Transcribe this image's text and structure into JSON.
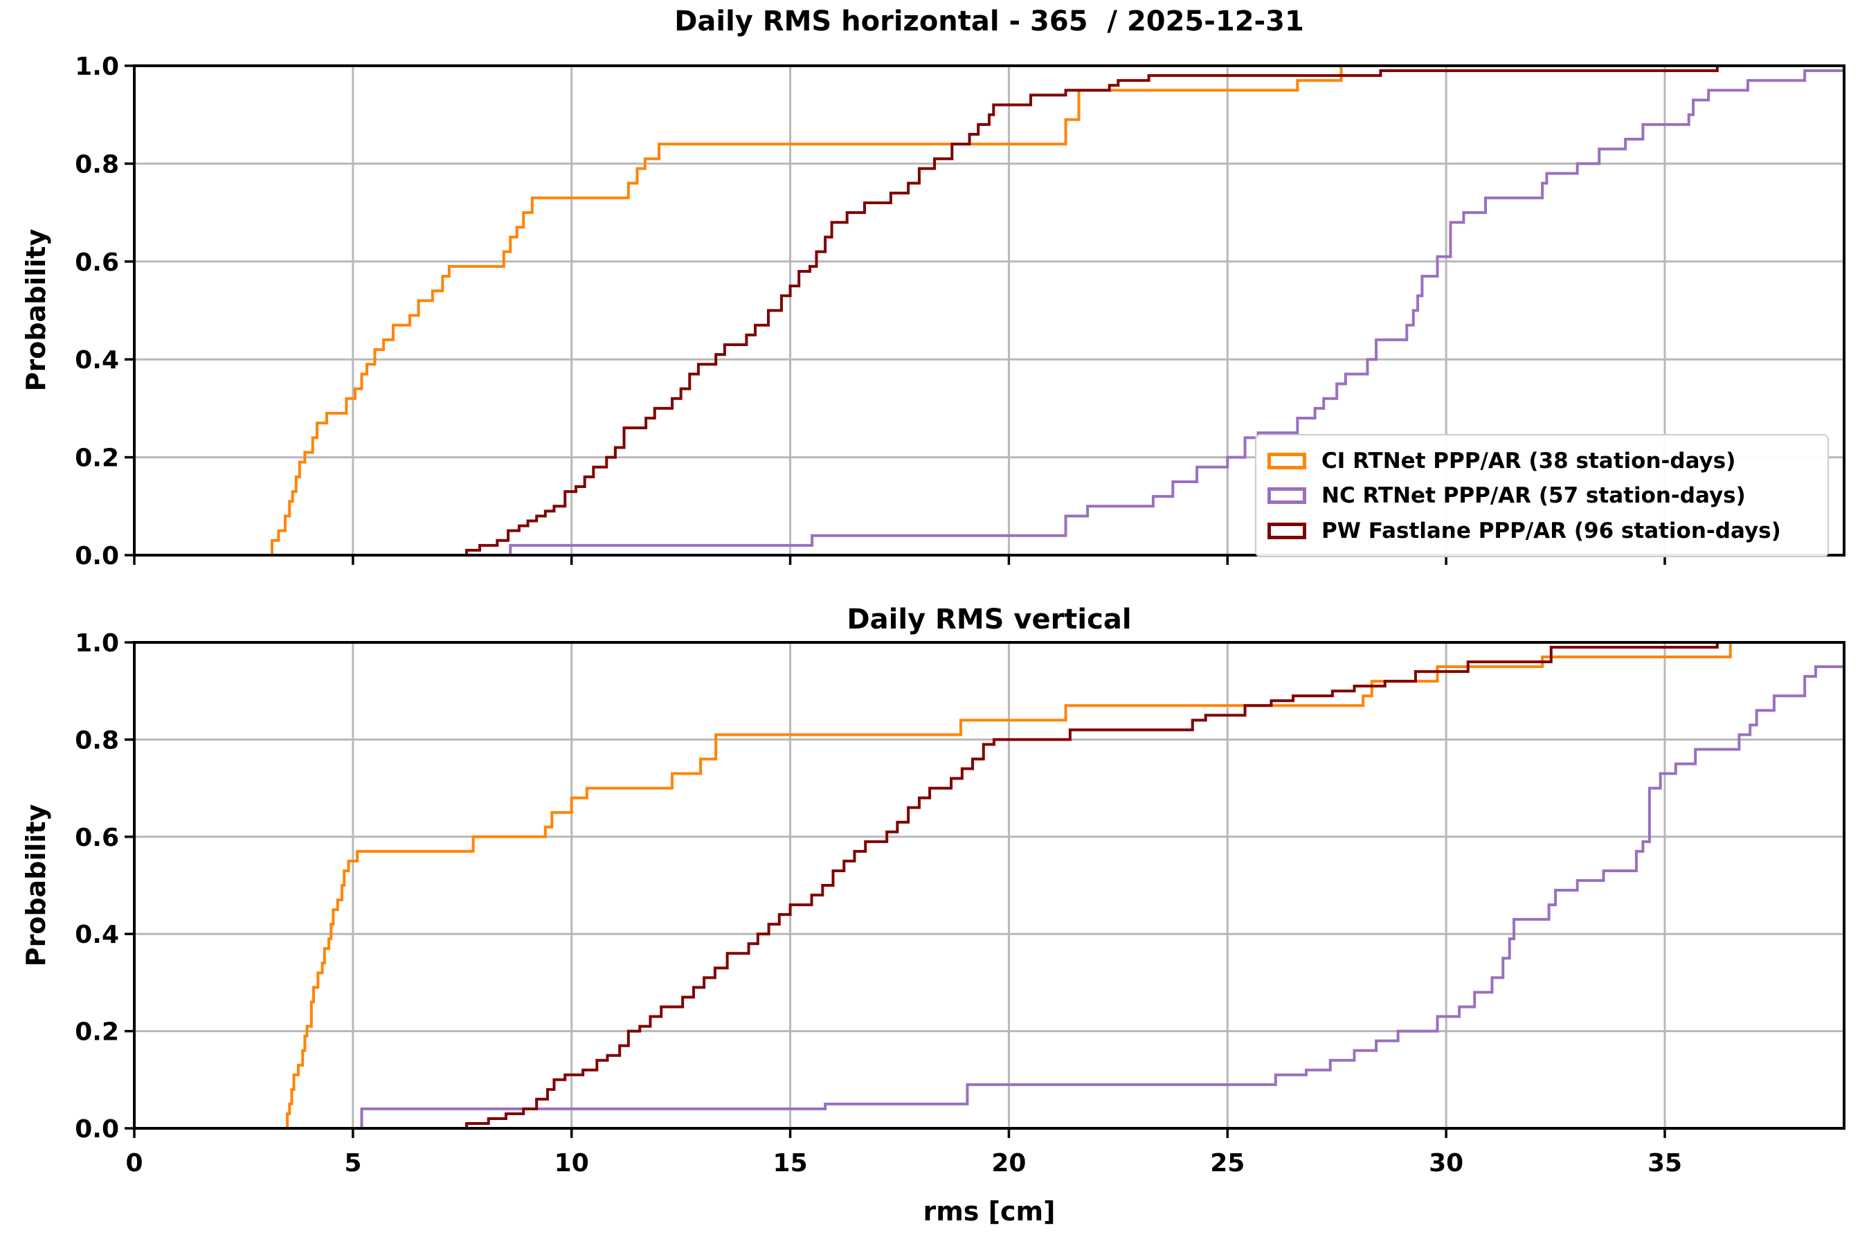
{
  "figure": {
    "title_top": "Daily RMS horizontal - 365  / 2025-12-31",
    "title_bottom": "Daily RMS vertical",
    "xlabel": "rms [cm]",
    "ylabel": "Probability"
  },
  "colors": {
    "ci_orange": "#ff8408",
    "nc_purple": "#9a6fc0",
    "pw_darkred": "#800000",
    "grid": "#b8b8b8",
    "axis": "#000000",
    "legend_border": "#cccccc",
    "background": "#ffffff"
  },
  "legend": {
    "entries": [
      {
        "label": "CI RTNet PPP/AR (38 station-days)",
        "color": "#ff8408"
      },
      {
        "label": "NC RTNet PPP/AR (57 station-days)",
        "color": "#9a6fc0"
      },
      {
        "label": "PW Fastlane PPP/AR (96 station-days)",
        "color": "#800000"
      }
    ]
  },
  "chart_data": [
    {
      "type": "line",
      "subtype": "ecdf-step",
      "title": "Daily RMS horizontal - 365  / 2025-12-31",
      "xlabel": "",
      "ylabel": "Probability",
      "xlim": [
        0,
        39.1
      ],
      "ylim": [
        0,
        1
      ],
      "xticks": [
        0,
        5,
        10,
        15,
        20,
        25,
        30,
        35
      ],
      "yticks": [
        0,
        0.2,
        0.4,
        0.6,
        0.8,
        1
      ],
      "show_x_tick_labels": false,
      "grid": true,
      "legend_position": "lower right",
      "series": [
        {
          "name": "CI RTNet PPP/AR (38 station-days)",
          "color": "#ff8408",
          "extend_right": true,
          "steps": [
            [
              3.15,
              0.03
            ],
            [
              3.3,
              0.05
            ],
            [
              3.45,
              0.08
            ],
            [
              3.55,
              0.11
            ],
            [
              3.62,
              0.13
            ],
            [
              3.7,
              0.16
            ],
            [
              3.78,
              0.19
            ],
            [
              3.9,
              0.21
            ],
            [
              4.08,
              0.24
            ],
            [
              4.18,
              0.27
            ],
            [
              4.4,
              0.29
            ],
            [
              4.85,
              0.32
            ],
            [
              5.05,
              0.34
            ],
            [
              5.2,
              0.37
            ],
            [
              5.32,
              0.39
            ],
            [
              5.5,
              0.42
            ],
            [
              5.7,
              0.44
            ],
            [
              5.92,
              0.47
            ],
            [
              6.3,
              0.49
            ],
            [
              6.5,
              0.52
            ],
            [
              6.82,
              0.54
            ],
            [
              7.05,
              0.57
            ],
            [
              7.2,
              0.59
            ],
            [
              8.45,
              0.62
            ],
            [
              8.6,
              0.65
            ],
            [
              8.75,
              0.67
            ],
            [
              8.9,
              0.7
            ],
            [
              9.1,
              0.73
            ],
            [
              11.3,
              0.76
            ],
            [
              11.5,
              0.79
            ],
            [
              11.68,
              0.81
            ],
            [
              12.0,
              0.84
            ],
            [
              21.3,
              0.89
            ],
            [
              21.6,
              0.95
            ],
            [
              26.6,
              0.97
            ],
            [
              27.6,
              1.0
            ]
          ]
        },
        {
          "name": "NC RTNet PPP/AR (57 station-days)",
          "color": "#9a6fc0",
          "extend_right": true,
          "steps": [
            [
              8.6,
              0.02
            ],
            [
              15.5,
              0.04
            ],
            [
              21.3,
              0.08
            ],
            [
              21.8,
              0.1
            ],
            [
              23.3,
              0.12
            ],
            [
              23.75,
              0.15
            ],
            [
              24.3,
              0.18
            ],
            [
              25.0,
              0.2
            ],
            [
              25.4,
              0.24
            ],
            [
              25.7,
              0.25
            ],
            [
              26.6,
              0.28
            ],
            [
              27.0,
              0.3
            ],
            [
              27.2,
              0.32
            ],
            [
              27.5,
              0.35
            ],
            [
              27.7,
              0.37
            ],
            [
              28.2,
              0.4
            ],
            [
              28.4,
              0.44
            ],
            [
              29.1,
              0.47
            ],
            [
              29.25,
              0.5
            ],
            [
              29.35,
              0.53
            ],
            [
              29.45,
              0.57
            ],
            [
              29.8,
              0.61
            ],
            [
              30.1,
              0.68
            ],
            [
              30.4,
              0.7
            ],
            [
              30.9,
              0.73
            ],
            [
              32.2,
              0.76
            ],
            [
              32.3,
              0.78
            ],
            [
              33.0,
              0.8
            ],
            [
              33.5,
              0.83
            ],
            [
              34.1,
              0.85
            ],
            [
              34.5,
              0.88
            ],
            [
              35.55,
              0.9
            ],
            [
              35.65,
              0.93
            ],
            [
              36.0,
              0.95
            ],
            [
              36.9,
              0.97
            ],
            [
              38.2,
              0.99
            ]
          ]
        },
        {
          "name": "PW Fastlane PPP/AR (96 station-days)",
          "color": "#800000",
          "extend_right": false,
          "steps": [
            [
              7.6,
              0.01
            ],
            [
              7.9,
              0.02
            ],
            [
              8.3,
              0.03
            ],
            [
              8.55,
              0.05
            ],
            [
              8.8,
              0.06
            ],
            [
              9.0,
              0.07
            ],
            [
              9.2,
              0.08
            ],
            [
              9.4,
              0.09
            ],
            [
              9.6,
              0.1
            ],
            [
              9.85,
              0.13
            ],
            [
              10.1,
              0.14
            ],
            [
              10.3,
              0.16
            ],
            [
              10.5,
              0.18
            ],
            [
              10.8,
              0.2
            ],
            [
              11.0,
              0.22
            ],
            [
              11.2,
              0.26
            ],
            [
              11.7,
              0.28
            ],
            [
              11.9,
              0.3
            ],
            [
              12.3,
              0.32
            ],
            [
              12.5,
              0.34
            ],
            [
              12.7,
              0.37
            ],
            [
              12.9,
              0.39
            ],
            [
              13.3,
              0.41
            ],
            [
              13.5,
              0.43
            ],
            [
              14.0,
              0.45
            ],
            [
              14.2,
              0.47
            ],
            [
              14.5,
              0.5
            ],
            [
              14.8,
              0.53
            ],
            [
              15.0,
              0.55
            ],
            [
              15.2,
              0.58
            ],
            [
              15.45,
              0.59
            ],
            [
              15.6,
              0.62
            ],
            [
              15.8,
              0.65
            ],
            [
              15.95,
              0.68
            ],
            [
              16.3,
              0.7
            ],
            [
              16.7,
              0.72
            ],
            [
              17.3,
              0.74
            ],
            [
              17.7,
              0.76
            ],
            [
              17.95,
              0.79
            ],
            [
              18.3,
              0.81
            ],
            [
              18.7,
              0.84
            ],
            [
              19.1,
              0.86
            ],
            [
              19.3,
              0.88
            ],
            [
              19.55,
              0.9
            ],
            [
              19.65,
              0.92
            ],
            [
              20.5,
              0.94
            ],
            [
              21.3,
              0.95
            ],
            [
              22.3,
              0.96
            ],
            [
              22.5,
              0.97
            ],
            [
              23.2,
              0.98
            ],
            [
              28.5,
              0.99
            ],
            [
              36.2,
              1.0
            ]
          ]
        }
      ]
    },
    {
      "type": "line",
      "subtype": "ecdf-step",
      "title": "Daily RMS vertical",
      "xlabel": "rms [cm]",
      "ylabel": "Probability",
      "xlim": [
        0,
        39.1
      ],
      "ylim": [
        0,
        1
      ],
      "xticks": [
        0,
        5,
        10,
        15,
        20,
        25,
        30,
        35
      ],
      "yticks": [
        0,
        0.2,
        0.4,
        0.6,
        0.8,
        1
      ],
      "show_x_tick_labels": true,
      "grid": true,
      "legend_position": "none",
      "series": [
        {
          "name": "CI RTNet PPP/AR (38 station-days)",
          "color": "#ff8408",
          "extend_right": false,
          "steps": [
            [
              3.5,
              0.03
            ],
            [
              3.55,
              0.05
            ],
            [
              3.6,
              0.08
            ],
            [
              3.65,
              0.11
            ],
            [
              3.75,
              0.13
            ],
            [
              3.85,
              0.16
            ],
            [
              3.9,
              0.19
            ],
            [
              3.95,
              0.21
            ],
            [
              4.05,
              0.26
            ],
            [
              4.1,
              0.29
            ],
            [
              4.2,
              0.32
            ],
            [
              4.3,
              0.34
            ],
            [
              4.35,
              0.37
            ],
            [
              4.45,
              0.39
            ],
            [
              4.5,
              0.42
            ],
            [
              4.55,
              0.45
            ],
            [
              4.65,
              0.47
            ],
            [
              4.75,
              0.5
            ],
            [
              4.8,
              0.53
            ],
            [
              4.9,
              0.55
            ],
            [
              5.1,
              0.57
            ],
            [
              7.75,
              0.6
            ],
            [
              9.4,
              0.62
            ],
            [
              9.55,
              0.65
            ],
            [
              10.0,
              0.68
            ],
            [
              10.35,
              0.7
            ],
            [
              12.3,
              0.73
            ],
            [
              12.95,
              0.76
            ],
            [
              13.3,
              0.81
            ],
            [
              18.9,
              0.84
            ],
            [
              21.3,
              0.87
            ],
            [
              28.1,
              0.89
            ],
            [
              28.3,
              0.92
            ],
            [
              29.8,
              0.95
            ],
            [
              32.2,
              0.97
            ],
            [
              36.5,
              1.0
            ]
          ]
        },
        {
          "name": "NC RTNet PPP/AR (57 station-days)",
          "color": "#9a6fc0",
          "extend_right": true,
          "steps": [
            [
              5.2,
              0.04
            ],
            [
              15.8,
              0.05
            ],
            [
              19.05,
              0.09
            ],
            [
              26.1,
              0.11
            ],
            [
              26.8,
              0.12
            ],
            [
              27.35,
              0.14
            ],
            [
              27.9,
              0.16
            ],
            [
              28.4,
              0.18
            ],
            [
              28.9,
              0.2
            ],
            [
              29.8,
              0.23
            ],
            [
              30.3,
              0.25
            ],
            [
              30.65,
              0.28
            ],
            [
              31.05,
              0.31
            ],
            [
              31.3,
              0.35
            ],
            [
              31.45,
              0.39
            ],
            [
              31.55,
              0.43
            ],
            [
              32.35,
              0.46
            ],
            [
              32.5,
              0.49
            ],
            [
              33.0,
              0.51
            ],
            [
              33.6,
              0.53
            ],
            [
              34.35,
              0.57
            ],
            [
              34.5,
              0.59
            ],
            [
              34.65,
              0.7
            ],
            [
              34.9,
              0.73
            ],
            [
              35.25,
              0.75
            ],
            [
              35.7,
              0.78
            ],
            [
              36.7,
              0.81
            ],
            [
              36.95,
              0.83
            ],
            [
              37.1,
              0.86
            ],
            [
              37.5,
              0.89
            ],
            [
              38.2,
              0.93
            ],
            [
              38.45,
              0.95
            ]
          ]
        },
        {
          "name": "PW Fastlane PPP/AR (96 station-days)",
          "color": "#800000",
          "extend_right": false,
          "steps": [
            [
              7.6,
              0.01
            ],
            [
              8.1,
              0.02
            ],
            [
              8.5,
              0.03
            ],
            [
              8.9,
              0.04
            ],
            [
              9.2,
              0.06
            ],
            [
              9.45,
              0.08
            ],
            [
              9.6,
              0.1
            ],
            [
              9.85,
              0.11
            ],
            [
              10.26,
              0.12
            ],
            [
              10.58,
              0.14
            ],
            [
              10.82,
              0.15
            ],
            [
              11.1,
              0.17
            ],
            [
              11.3,
              0.2
            ],
            [
              11.56,
              0.21
            ],
            [
              11.8,
              0.23
            ],
            [
              12.05,
              0.25
            ],
            [
              12.54,
              0.27
            ],
            [
              12.79,
              0.29
            ],
            [
              13.03,
              0.31
            ],
            [
              13.28,
              0.33
            ],
            [
              13.56,
              0.36
            ],
            [
              14.05,
              0.38
            ],
            [
              14.26,
              0.4
            ],
            [
              14.51,
              0.42
            ],
            [
              14.75,
              0.44
            ],
            [
              15.0,
              0.46
            ],
            [
              15.49,
              0.48
            ],
            [
              15.74,
              0.5
            ],
            [
              15.98,
              0.53
            ],
            [
              16.23,
              0.55
            ],
            [
              16.47,
              0.57
            ],
            [
              16.72,
              0.59
            ],
            [
              17.21,
              0.61
            ],
            [
              17.45,
              0.63
            ],
            [
              17.7,
              0.66
            ],
            [
              17.95,
              0.68
            ],
            [
              18.19,
              0.7
            ],
            [
              18.68,
              0.72
            ],
            [
              18.93,
              0.74
            ],
            [
              19.17,
              0.76
            ],
            [
              19.42,
              0.79
            ],
            [
              19.66,
              0.8
            ],
            [
              21.4,
              0.82
            ],
            [
              24.2,
              0.84
            ],
            [
              24.5,
              0.85
            ],
            [
              25.4,
              0.87
            ],
            [
              26.0,
              0.88
            ],
            [
              26.5,
              0.89
            ],
            [
              27.4,
              0.9
            ],
            [
              27.9,
              0.91
            ],
            [
              28.6,
              0.92
            ],
            [
              29.3,
              0.94
            ],
            [
              30.5,
              0.96
            ],
            [
              32.4,
              0.99
            ],
            [
              36.2,
              1.0
            ]
          ]
        }
      ]
    }
  ]
}
